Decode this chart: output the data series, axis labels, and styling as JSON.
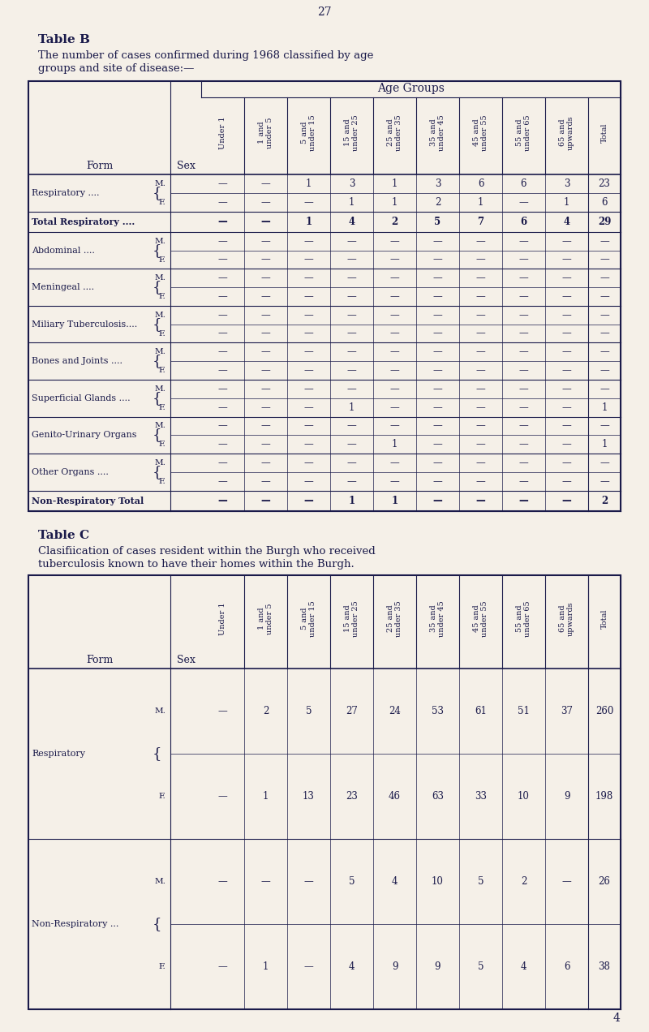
{
  "bg_color": "#f5f0e8",
  "text_color": "#1a1a4a",
  "page_number": "27",
  "table_b_title": "Table B",
  "table_b_desc1": "The number of cases confirmed during 1968 classified by age",
  "table_b_desc2": "groups and site of disease:—",
  "age_groups_label": "Age Groups",
  "col_headers": [
    "Under 1",
    "1 and\nunder 5",
    "5 and\nunder 15",
    "15 and\nunder 25",
    "25 and\nunder 35",
    "35 and\nunder 45",
    "45 and\nunder 55",
    "55 and\nunder 65",
    "65 and\nupwards",
    "Total"
  ],
  "table_b_rows": [
    {
      "form": "Respiratory ....",
      "sex": [
        "M.",
        "F."
      ],
      "data": [
        [
          "—",
          "—",
          "1",
          "3",
          "1",
          "3",
          "6",
          "6",
          "3",
          "23"
        ],
        [
          "—",
          "—",
          "—",
          "1",
          "1",
          "2",
          "1",
          "—",
          "1",
          "6"
        ]
      ],
      "bold": false
    },
    {
      "form": "Total Respiratory ....",
      "sex": [
        ""
      ],
      "data": [
        [
          "—",
          "—",
          "1",
          "4",
          "2",
          "5",
          "7",
          "6",
          "4",
          "29"
        ]
      ],
      "bold": true
    },
    {
      "form": "Abdominal ....",
      "sex": [
        "M.",
        "F."
      ],
      "data": [
        [
          "—",
          "—",
          "—",
          "—",
          "—",
          "—",
          "—",
          "—",
          "—",
          "—"
        ],
        [
          "—",
          "—",
          "—",
          "—",
          "—",
          "—",
          "—",
          "—",
          "—",
          "—"
        ]
      ],
      "bold": false
    },
    {
      "form": "Meningeal ....",
      "sex": [
        "M.",
        "F."
      ],
      "data": [
        [
          "—",
          "—",
          "—",
          "—",
          "—",
          "—",
          "—",
          "—",
          "—",
          "—"
        ],
        [
          "—",
          "—",
          "—",
          "—",
          "—",
          "—",
          "—",
          "—",
          "—",
          "—"
        ]
      ],
      "bold": false
    },
    {
      "form": "Miliary Tuberculosis....",
      "sex": [
        "M.",
        "F."
      ],
      "data": [
        [
          "—",
          "—",
          "—",
          "—",
          "—",
          "—",
          "—",
          "—",
          "—",
          "—"
        ],
        [
          "—",
          "—",
          "—",
          "—",
          "—",
          "—",
          "—",
          "—",
          "—",
          "—"
        ]
      ],
      "bold": false
    },
    {
      "form": "Bones and Joints ....",
      "sex": [
        "M.",
        "F."
      ],
      "data": [
        [
          "—",
          "—",
          "—",
          "—",
          "—",
          "—",
          "—",
          "—",
          "—",
          "—"
        ],
        [
          "—",
          "—",
          "—",
          "—",
          "—",
          "—",
          "—",
          "—",
          "—",
          "—"
        ]
      ],
      "bold": false
    },
    {
      "form": "Superficial Glands ....",
      "sex": [
        "M.",
        "F."
      ],
      "data": [
        [
          "—",
          "—",
          "—",
          "—",
          "—",
          "—",
          "—",
          "—",
          "—",
          "—"
        ],
        [
          "—",
          "—",
          "—",
          "1",
          "—",
          "—",
          "—",
          "—",
          "—",
          "1"
        ]
      ],
      "bold": false
    },
    {
      "form": "Genito-Urinary Organs",
      "sex": [
        "M.",
        "F."
      ],
      "data": [
        [
          "—",
          "—",
          "—",
          "—",
          "—",
          "—",
          "—",
          "—",
          "—",
          "—"
        ],
        [
          "—",
          "—",
          "—",
          "—",
          "1",
          "—",
          "—",
          "—",
          "—",
          "1"
        ]
      ],
      "bold": false
    },
    {
      "form": "Other Organs ....",
      "sex": [
        "M.",
        "F."
      ],
      "data": [
        [
          "—",
          "—",
          "—",
          "—",
          "—",
          "—",
          "—",
          "—",
          "—",
          "—"
        ],
        [
          "—",
          "—",
          "—",
          "—",
          "—",
          "—",
          "—",
          "—",
          "—",
          "—"
        ]
      ],
      "bold": false
    },
    {
      "form": "Non-Respiratory Total",
      "sex": [
        ""
      ],
      "data": [
        [
          "—",
          "—",
          "—",
          "1",
          "1",
          "—",
          "—",
          "—",
          "—",
          "2"
        ]
      ],
      "bold": true
    }
  ],
  "table_c_title": "Table C",
  "table_c_desc1": "Clasifiication of cases resident within the Burgh who received",
  "table_c_desc2": "tuberculosis known to have their homes within the Burgh.",
  "table_c_rows": [
    {
      "form": "Respiratory",
      "sex": [
        "M.",
        "F."
      ],
      "data": [
        [
          "—",
          "2",
          "5",
          "27",
          "24",
          "53",
          "61",
          "51",
          "37",
          "260"
        ],
        [
          "—",
          "1",
          "13",
          "23",
          "46",
          "63",
          "33",
          "10",
          "9",
          "198"
        ]
      ]
    },
    {
      "form": "Non-Respiratory ...",
      "sex": [
        "M.",
        "F."
      ],
      "data": [
        [
          "—",
          "—",
          "—",
          "5",
          "4",
          "10",
          "5",
          "2",
          "—",
          "26"
        ],
        [
          "—",
          "1",
          "—",
          "4",
          "9",
          "9",
          "5",
          "4",
          "6",
          "38"
        ]
      ]
    }
  ]
}
